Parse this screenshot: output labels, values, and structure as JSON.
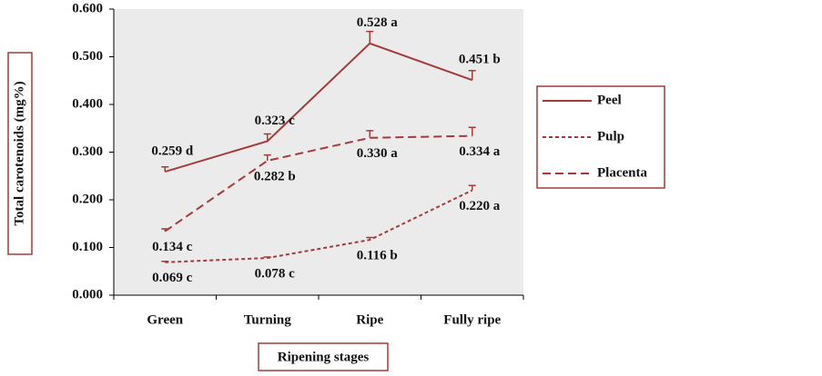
{
  "chart_data": {
    "type": "line",
    "y_label": "Total carotenoids (mg%)",
    "x_label": "Ripening stages",
    "categories": [
      "Green",
      "Turning",
      "Ripe",
      "Fully ripe"
    ],
    "ylim": [
      0,
      0.6
    ],
    "yticks": [
      {
        "value": 0,
        "label": "0.000"
      },
      {
        "value": 0.1,
        "label": "0.100"
      },
      {
        "value": 0.2,
        "label": "0.200"
      },
      {
        "value": 0.3,
        "label": "0.300"
      },
      {
        "value": 0.4,
        "label": "0.400"
      },
      {
        "value": 0.5,
        "label": "0.500"
      },
      {
        "value": 0.6,
        "label": "0.600"
      }
    ],
    "grid": false,
    "legend": "right",
    "series": [
      {
        "name": "Peel",
        "color": "#a33b3b",
        "dash": "solid",
        "values": [
          0.259,
          0.323,
          0.528,
          0.451
        ],
        "errors": [
          0.01,
          0.015,
          0.025,
          0.02
        ],
        "value_labels": [
          "0.259 d",
          "0.323 c",
          "0.528 a",
          "0.451 b"
        ]
      },
      {
        "name": "Pulp",
        "color": "#a33b3b",
        "dash": "dotted",
        "values": [
          0.069,
          0.078,
          0.116,
          0.22
        ],
        "errors": [
          0.002,
          0.002,
          0.005,
          0.01
        ],
        "value_labels": [
          "0.069 c",
          "0.078 c",
          "0.116 b",
          "0.220 a"
        ]
      },
      {
        "name": "Placenta",
        "color": "#a33b3b",
        "dash": "dashed",
        "values": [
          0.134,
          0.282,
          0.33,
          0.334
        ],
        "errors": [
          0.005,
          0.012,
          0.015,
          0.018
        ],
        "value_labels": [
          "0.134 c",
          "0.282 b",
          "0.330 a",
          "0.334 a"
        ]
      }
    ]
  }
}
